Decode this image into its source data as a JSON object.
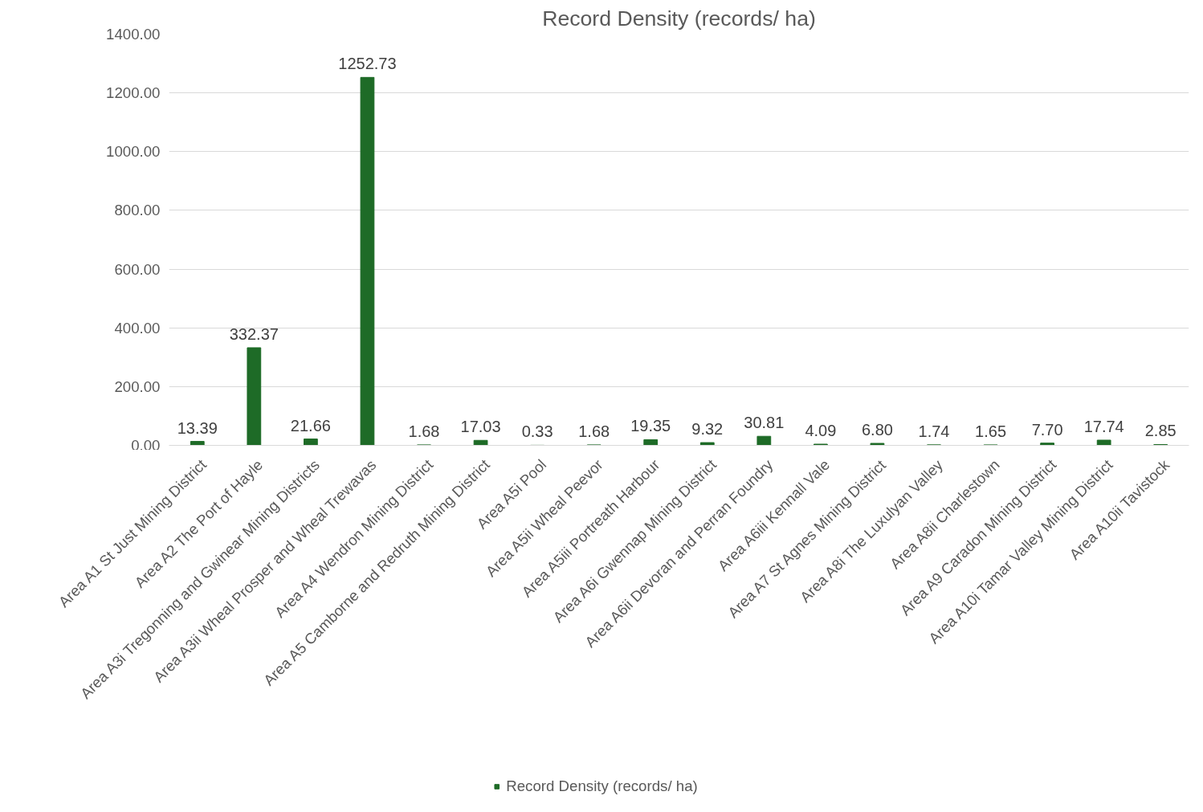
{
  "chart_data": {
    "type": "bar",
    "title": "Record Density (records/ ha)",
    "categories": [
      "Area A1 St Just Mining District",
      "Area A2 The Port of Hayle",
      "Area A3i Tregonning and Gwinear Mining Districts",
      "Area A3ii Wheal Prosper and Wheal Trewavas",
      "Area A4 Wendron Mining District",
      "Area A5 Camborne and Redruth Mining District",
      "Area A5i Pool",
      "Area A5ii Wheal Peevor",
      "Area A5iii Portreath Harbour",
      "Area A6i Gwennap Mining District",
      "Area A6ii Devoran and Perran Foundry",
      "Area A6iii Kennall Vale",
      "Area A7 St Agnes Mining District",
      "Area A8i The Luxulyan Valley",
      "Area A8ii Charlestown",
      "Area A9 Caradon Mining District",
      "Area A10i Tamar Valley Mining District",
      "Area A10ii Tavistock"
    ],
    "series": [
      {
        "name": "Record Density (records/ ha)",
        "color": "#1e6b27",
        "values": [
          13.39,
          332.37,
          21.66,
          1252.73,
          1.68,
          17.03,
          0.33,
          1.68,
          19.35,
          9.32,
          30.81,
          4.09,
          6.8,
          1.74,
          1.65,
          7.7,
          17.74,
          2.85
        ],
        "value_labels": [
          "13.39",
          "332.37",
          "21.66",
          "1252.73",
          "1.68",
          "17.03",
          "0.33",
          "1.68",
          "19.35",
          "9.32",
          "30.81",
          "4.09",
          "6.80",
          "1.74",
          "1.65",
          "7.70",
          "17.74",
          "2.85"
        ]
      }
    ],
    "ylim": [
      0,
      1400
    ],
    "yticks": [
      {
        "value": 0,
        "label": "0.00"
      },
      {
        "value": 200,
        "label": "200.00"
      },
      {
        "value": 400,
        "label": "400.00"
      },
      {
        "value": 600,
        "label": "600.00"
      },
      {
        "value": 800,
        "label": "800.00"
      },
      {
        "value": 1000,
        "label": "1000.00"
      },
      {
        "value": 1200,
        "label": "1200.00"
      },
      {
        "value": 1400,
        "label": "1400.00"
      }
    ],
    "grid": "y",
    "legend": "bottom"
  }
}
